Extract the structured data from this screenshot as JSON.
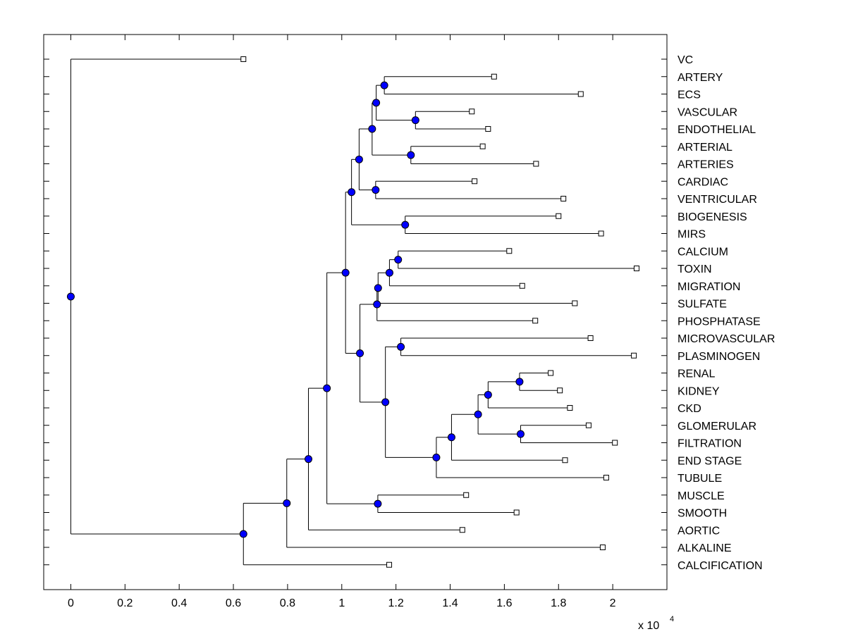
{
  "chart_data": {
    "type": "dendrogram",
    "title": "",
    "xlabel": "",
    "ylabel": "",
    "x_scale_label": "x 10",
    "x_scale_exponent": "4",
    "xlim": [
      -0.1,
      2.2
    ],
    "x_ticks": [
      0,
      0.2,
      0.4,
      0.6,
      0.8,
      1,
      1.2,
      1.4,
      1.6,
      1.8,
      2
    ],
    "x_tick_labels": [
      "0",
      "0.2",
      "0.4",
      "0.6",
      "0.8",
      "1",
      "1.2",
      "1.4",
      "1.6",
      "1.8",
      "2"
    ],
    "grid": false,
    "leaves": [
      {
        "label": "VC",
        "value": 0.637
      },
      {
        "label": "ARTERY",
        "value": 1.562
      },
      {
        "label": "ECS",
        "value": 1.882
      },
      {
        "label": "VASCULAR",
        "value": 1.48
      },
      {
        "label": "ENDOTHELIAL",
        "value": 1.54
      },
      {
        "label": "ARTERIAL",
        "value": 1.52
      },
      {
        "label": "ARTERIES",
        "value": 1.717
      },
      {
        "label": "CARDIAC",
        "value": 1.49
      },
      {
        "label": "VENTRICULAR",
        "value": 1.818
      },
      {
        "label": "BIOGENESIS",
        "value": 1.8
      },
      {
        "label": "MIRS",
        "value": 1.957
      },
      {
        "label": "CALCIUM",
        "value": 1.618
      },
      {
        "label": "TOXIN",
        "value": 2.088
      },
      {
        "label": "MIGRATION",
        "value": 1.666
      },
      {
        "label": "SULFATE",
        "value": 1.86
      },
      {
        "label": "PHOSPHATASE",
        "value": 1.714
      },
      {
        "label": "MICROVASCULAR",
        "value": 1.918
      },
      {
        "label": "PLASMINOGEN",
        "value": 2.078
      },
      {
        "label": "RENAL",
        "value": 1.771
      },
      {
        "label": "KIDNEY",
        "value": 1.805
      },
      {
        "label": "CKD",
        "value": 1.842
      },
      {
        "label": "GLOMERULAR",
        "value": 1.911
      },
      {
        "label": "FILTRATION",
        "value": 2.008
      },
      {
        "label": "END STAGE",
        "value": 1.824
      },
      {
        "label": "TUBULE",
        "value": 1.976
      },
      {
        "label": "MUSCLE",
        "value": 1.459
      },
      {
        "label": "SMOOTH",
        "value": 1.645
      },
      {
        "label": "AORTIC",
        "value": 1.445
      },
      {
        "label": "ALKALINE",
        "value": 1.963
      },
      {
        "label": "CALCIFICATION",
        "value": 1.175
      }
    ],
    "merges": [
      {
        "id": "n1",
        "height": 1.157,
        "children": [
          "ARTERY",
          "ECS"
        ]
      },
      {
        "id": "n2",
        "height": 1.272,
        "children": [
          "VASCULAR",
          "ENDOTHELIAL"
        ]
      },
      {
        "id": "n3",
        "height": 1.127,
        "children": [
          "n1",
          "n2"
        ]
      },
      {
        "id": "n4",
        "height": 1.255,
        "children": [
          "ARTERIAL",
          "ARTERIES"
        ]
      },
      {
        "id": "n5",
        "height": 1.112,
        "children": [
          "n3",
          "n4"
        ]
      },
      {
        "id": "n6",
        "height": 1.125,
        "children": [
          "CARDIAC",
          "VENTRICULAR"
        ]
      },
      {
        "id": "n7",
        "height": 1.064,
        "children": [
          "n5",
          "n6"
        ]
      },
      {
        "id": "n8",
        "height": 1.234,
        "children": [
          "BIOGENESIS",
          "MIRS"
        ]
      },
      {
        "id": "n9",
        "height": 1.036,
        "children": [
          "n7",
          "n8"
        ]
      },
      {
        "id": "n10",
        "height": 1.208,
        "children": [
          "CALCIUM",
          "TOXIN"
        ]
      },
      {
        "id": "n11",
        "height": 1.176,
        "children": [
          "n10",
          "MIGRATION"
        ]
      },
      {
        "id": "n12",
        "height": 1.134,
        "children": [
          "n11",
          "SULFATE"
        ]
      },
      {
        "id": "n13",
        "height": 1.13,
        "children": [
          "n12",
          "PHOSPHATASE"
        ]
      },
      {
        "id": "n14",
        "height": 1.218,
        "children": [
          "MICROVASCULAR",
          "PLASMINOGEN"
        ]
      },
      {
        "id": "n15",
        "height": 1.656,
        "children": [
          "RENAL",
          "KIDNEY"
        ]
      },
      {
        "id": "n16",
        "height": 1.54,
        "children": [
          "n15",
          "CKD"
        ]
      },
      {
        "id": "n17",
        "height": 1.66,
        "children": [
          "GLOMERULAR",
          "FILTRATION"
        ]
      },
      {
        "id": "n18",
        "height": 1.503,
        "children": [
          "n16",
          "n17"
        ]
      },
      {
        "id": "n19",
        "height": 1.405,
        "children": [
          "n18",
          "END STAGE"
        ]
      },
      {
        "id": "n20",
        "height": 1.349,
        "children": [
          "n19",
          "TUBULE"
        ]
      },
      {
        "id": "n21",
        "height": 1.161,
        "children": [
          "n14",
          "n20"
        ]
      },
      {
        "id": "n22",
        "height": 1.067,
        "children": [
          "n13",
          "n21"
        ]
      },
      {
        "id": "n23",
        "height": 1.014,
        "children": [
          "n9",
          "n22"
        ]
      },
      {
        "id": "n24",
        "height": 1.133,
        "children": [
          "MUSCLE",
          "SMOOTH"
        ]
      },
      {
        "id": "n25",
        "height": 0.945,
        "children": [
          "n23",
          "n24"
        ]
      },
      {
        "id": "n26",
        "height": 0.877,
        "children": [
          "n25",
          "AORTIC"
        ]
      },
      {
        "id": "n27",
        "height": 0.797,
        "children": [
          "n26",
          "ALKALINE"
        ]
      },
      {
        "id": "n28",
        "height": 0.637,
        "children": [
          "n27",
          "CALCIFICATION"
        ]
      },
      {
        "id": "n29",
        "height": 0.0,
        "children": [
          "VC",
          "n28"
        ]
      }
    ],
    "colors": {
      "node_fill": "#0000ff",
      "node_stroke": "#000000",
      "leaf_fill": "#ffffff",
      "line": "#000000"
    }
  }
}
